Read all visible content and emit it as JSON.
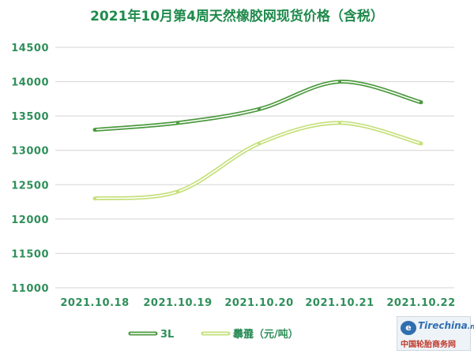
{
  "chart_data": {
    "type": "line",
    "title": "2021年10月第4周天然橡胶网现货价格（含税）",
    "categories": [
      "2021.10.18",
      "2021.10.19",
      "2021.10.20",
      "2021.10.21",
      "2021.10.22"
    ],
    "series": [
      {
        "name": "3L",
        "color": "#4c9a3f",
        "values": [
          13300,
          13400,
          13600,
          14000,
          13700
        ]
      },
      {
        "name": "泰混",
        "color": "#c5e07a",
        "values": [
          12300,
          12400,
          13100,
          13400,
          13100
        ]
      }
    ],
    "legend_suffix": "单价（元/吨）",
    "y_ticks": [
      11000,
      11500,
      12000,
      12500,
      13000,
      13500,
      14000,
      14500
    ],
    "ylim": [
      11000,
      14500
    ],
    "grid": true,
    "legend_position": "bottom"
  },
  "logo": {
    "mark": "e",
    "word": "Tirechina",
    "word_suffix": ".net",
    "caption": "中国轮胎商务网"
  }
}
